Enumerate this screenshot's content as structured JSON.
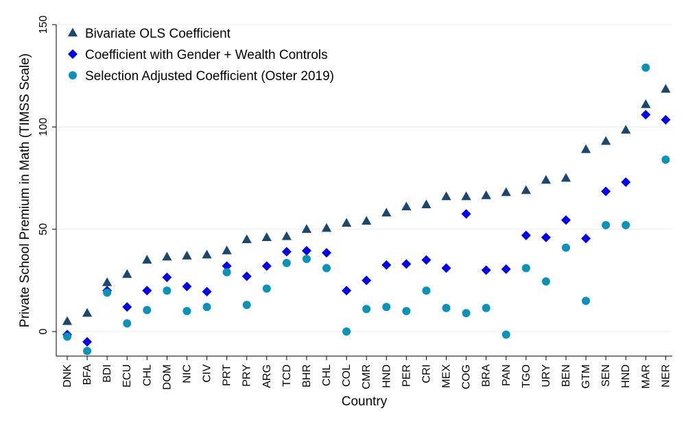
{
  "chart_data": {
    "type": "scatter",
    "title": "",
    "xlabel": "Country",
    "ylabel": "Private School Premium in Math (TIMSS Scale)",
    "ylim": [
      -12,
      150
    ],
    "yticks": [
      0,
      50,
      100,
      150
    ],
    "grid": true,
    "legend_position": "top-left",
    "categories": [
      "DNK",
      "BFA",
      "BDI",
      "ECU",
      "CHL",
      "DOM",
      "NIC",
      "CIV",
      "PRT",
      "PRY",
      "ARG",
      "TCD",
      "BHR",
      "CHL",
      "COL",
      "CMR",
      "HND",
      "PER",
      "CRI",
      "MEX",
      "COG",
      "BRA",
      "PAN",
      "TGO",
      "URY",
      "BEN",
      "GTM",
      "SEN",
      "HND",
      "MAR",
      "NER"
    ],
    "series": [
      {
        "name": "Bivariate OLS Coefficient",
        "marker": "triangle",
        "color": "#1a476f",
        "values": [
          5,
          9,
          24,
          28,
          35,
          36.5,
          37,
          37.5,
          39.5,
          45,
          46,
          46.5,
          50,
          50.5,
          53,
          54,
          58,
          61,
          62,
          66,
          66,
          66.5,
          68,
          69,
          74,
          75,
          89,
          93,
          98.5,
          111,
          118.5
        ]
      },
      {
        "name": "Coefficient with Gender + Wealth Controls",
        "marker": "diamond",
        "color": "#0000ee",
        "values": [
          -1.5,
          -5,
          20,
          12,
          20,
          26.5,
          22,
          19.5,
          32,
          27,
          32,
          39,
          39.5,
          38.5,
          20,
          25,
          32.5,
          33,
          35,
          31,
          57.5,
          30,
          30.5,
          47,
          46,
          54.5,
          45.5,
          68.5,
          73,
          106,
          103.5
        ]
      },
      {
        "name": "Selection Adjusted Coefficient (Oster 2019)",
        "marker": "circle",
        "color": "#0a93b8",
        "values": [
          -2.5,
          -9.5,
          19,
          4,
          10.5,
          20,
          10,
          12,
          29,
          13,
          21,
          33.5,
          35.5,
          31,
          0,
          11,
          12,
          10,
          20,
          11.5,
          9,
          11.5,
          -1.5,
          31,
          24.5,
          41,
          15,
          52,
          52,
          129,
          84
        ]
      }
    ]
  }
}
